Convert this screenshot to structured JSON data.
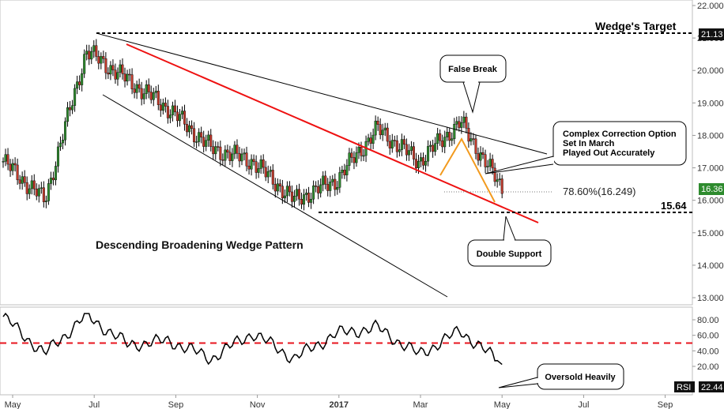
{
  "chart_data": [
    {
      "type": "candlestick",
      "price_axis": {
        "ticks": [
          "22.000",
          "21.000",
          "20.000",
          "19.000",
          "18.000",
          "17.000",
          "16.000",
          "15.000",
          "14.000",
          "13.000"
        ],
        "ylim": [
          12.8,
          22.2
        ]
      },
      "time_axis": {
        "ticks": [
          "May",
          "Jul",
          "Sep",
          "Nov",
          "2017",
          "Mar",
          "May",
          "Jul",
          "Sep"
        ],
        "bold_tick": "2017"
      },
      "price_series": {
        "x": [
          "2016-05",
          "2016-06",
          "2016-07",
          "2016-08",
          "2016-09",
          "2016-10",
          "2016-11",
          "2016-12",
          "2017-01",
          "2017-02",
          "2017-03",
          "2017-04",
          "2017-05"
        ],
        "close": [
          17.2,
          16.0,
          20.6,
          19.7,
          18.8,
          17.6,
          17.2,
          16.0,
          16.6,
          18.2,
          17.2,
          18.4,
          16.36
        ]
      },
      "last_price": "16.36",
      "annotations": {
        "target_label": "Wedge's Target",
        "target_price": "21.13",
        "support_price": "15.64",
        "fib_label": "78.60%(16.249)",
        "pattern_label": "Descending Broadening Wedge Pattern",
        "false_break": "False Break",
        "correction": [
          "Complex Correction Option",
          "Set In March",
          "Played Out Accurately"
        ],
        "double_support": "Double Support"
      },
      "lines": {
        "upper_wedge": {
          "from": [
            "2016-07",
            21.13
          ],
          "to": [
            "2017-06",
            17.5
          ]
        },
        "lower_wedge": {
          "from": [
            "2016-07",
            19.3
          ],
          "to": [
            "2017-03",
            13.1
          ]
        },
        "red_trend": {
          "from": [
            "2016-07",
            20.9
          ],
          "to": [
            "2017-06",
            15.3
          ]
        },
        "colors": {
          "wedge": "#000000",
          "trend": "#ee1111",
          "pattern": "#f29a1e"
        }
      },
      "colors": {
        "up": "#2e8b2e",
        "down": "#c0392b"
      }
    },
    {
      "type": "line",
      "name": "RSI",
      "rsi_axis": {
        "ticks": [
          "80.00",
          "60.00",
          "40.00",
          "20.00"
        ],
        "ylim": [
          12,
          90
        ]
      },
      "level": 50,
      "last_value": "22.44",
      "label": "RSI",
      "callout": "Oversold Heavily",
      "x": [
        "2016-05",
        "2016-06",
        "2016-07",
        "2016-08",
        "2016-09",
        "2016-10",
        "2016-11",
        "2016-12",
        "2017-01",
        "2017-02",
        "2017-03",
        "2017-04",
        "2017-05"
      ],
      "values": [
        84,
        36,
        86,
        48,
        53,
        30,
        63,
        30,
        62,
        70,
        35,
        66,
        22.44
      ],
      "colors": {
        "line": "#000000",
        "level": "#e8141e"
      }
    }
  ]
}
